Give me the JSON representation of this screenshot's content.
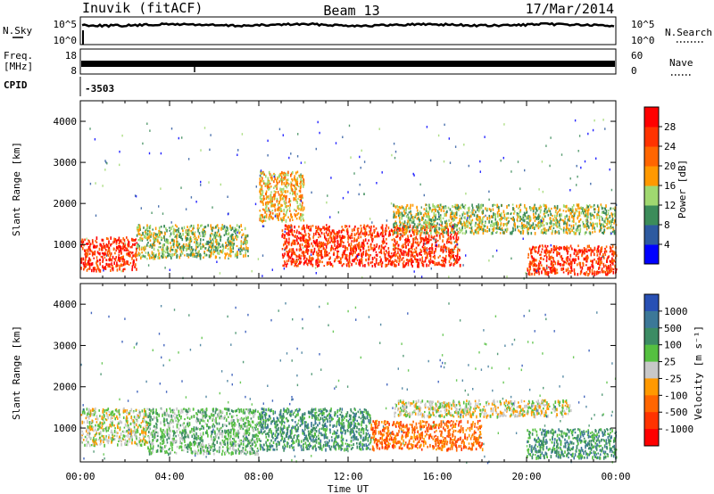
{
  "header": {
    "station": "Inuvik (fitACF)",
    "beam": "Beam 13",
    "date": "17/Mar/2014"
  },
  "top_panels": {
    "nsky_label": "N.Sky",
    "nsky_ticks": [
      "10^5",
      "10^0"
    ],
    "nsearch_label": "N.Search",
    "nsearch_ticks": [
      "10^5",
      "10^0"
    ],
    "freq_label": "Freq.",
    "freq_unit": "[MHz]",
    "freq_ticks": [
      "18",
      "8"
    ],
    "nave_label": "Nave",
    "nave_ticks": [
      "60",
      "0"
    ],
    "cpid_label": "CPID",
    "cpid_value": "-3503"
  },
  "colors": {
    "power_scale": [
      "#0000ff",
      "#2d5aa0",
      "#3c8c5a",
      "#a0d870",
      "#ff9900",
      "#ff6600",
      "#ff3300",
      "#ff0000"
    ],
    "velocity_scale": [
      "#2850b4",
      "#3c7898",
      "#3c8c64",
      "#55c040",
      "#c8c8c8",
      "#ff9900",
      "#ff6600",
      "#ff3300",
      "#ff0000"
    ]
  },
  "chart_data": [
    {
      "type": "heatmap",
      "parameter": "power",
      "ylabel": "Slant Range [km]",
      "colorbar_label": "Power [dB]",
      "colorbar_ticks": [
        "4",
        "8",
        "12",
        "16",
        "20",
        "24",
        "28"
      ],
      "ylim": [
        180,
        4500
      ],
      "y_ticks": [
        "1000",
        "2000",
        "3000",
        "4000"
      ],
      "xlim_hours": [
        0,
        24
      ],
      "x_ticks": [
        "00:00",
        "04:00",
        "08:00",
        "12:00",
        "16:00",
        "20:00",
        "00:00"
      ],
      "xlabel": "Time UT",
      "scatter_regions": [
        {
          "t": [
            0,
            2.5
          ],
          "range_km": [
            400,
            1200
          ],
          "dominant_dB": 26
        },
        {
          "t": [
            2.5,
            7.5
          ],
          "range_km": [
            700,
            1500
          ],
          "dominant_dB": 14
        },
        {
          "t": [
            8,
            10
          ],
          "range_km": [
            1600,
            2800
          ],
          "dominant_dB": 20
        },
        {
          "t": [
            9,
            17
          ],
          "range_km": [
            500,
            1500
          ],
          "dominant_dB": 28
        },
        {
          "t": [
            14,
            24
          ],
          "range_km": [
            1300,
            2000
          ],
          "dominant_dB": 14
        },
        {
          "t": [
            20,
            24
          ],
          "range_km": [
            300,
            1000
          ],
          "dominant_dB": 28
        }
      ]
    },
    {
      "type": "heatmap",
      "parameter": "velocity",
      "ylabel": "Slant Range [km]",
      "colorbar_label": "Velocity [m s⁻¹]",
      "colorbar_ticks": [
        "1000",
        "500",
        "100",
        "25",
        "-25",
        "-100",
        "-500",
        "-1000"
      ],
      "ylim": [
        180,
        4500
      ],
      "y_ticks": [
        "1000",
        "2000",
        "3000",
        "4000"
      ],
      "xlim_hours": [
        0,
        24
      ],
      "x_ticks": [
        "00:00",
        "04:00",
        "08:00",
        "12:00",
        "16:00",
        "20:00",
        "00:00"
      ],
      "xlabel": "Time UT",
      "scatter_regions": [
        {
          "t": [
            0,
            3
          ],
          "range_km": [
            600,
            1500
          ],
          "dominant_ms": 0
        },
        {
          "t": [
            3,
            8
          ],
          "range_km": [
            400,
            1500
          ],
          "dominant_ms": 100
        },
        {
          "t": [
            8,
            13
          ],
          "range_km": [
            500,
            1500
          ],
          "dominant_ms": 300
        },
        {
          "t": [
            13,
            18
          ],
          "range_km": [
            500,
            1200
          ],
          "dominant_ms": -200
        },
        {
          "t": [
            14,
            22
          ],
          "range_km": [
            1300,
            1700
          ],
          "dominant_ms": 0
        },
        {
          "t": [
            20,
            24
          ],
          "range_km": [
            300,
            1000
          ],
          "dominant_ms": 200
        }
      ]
    }
  ]
}
